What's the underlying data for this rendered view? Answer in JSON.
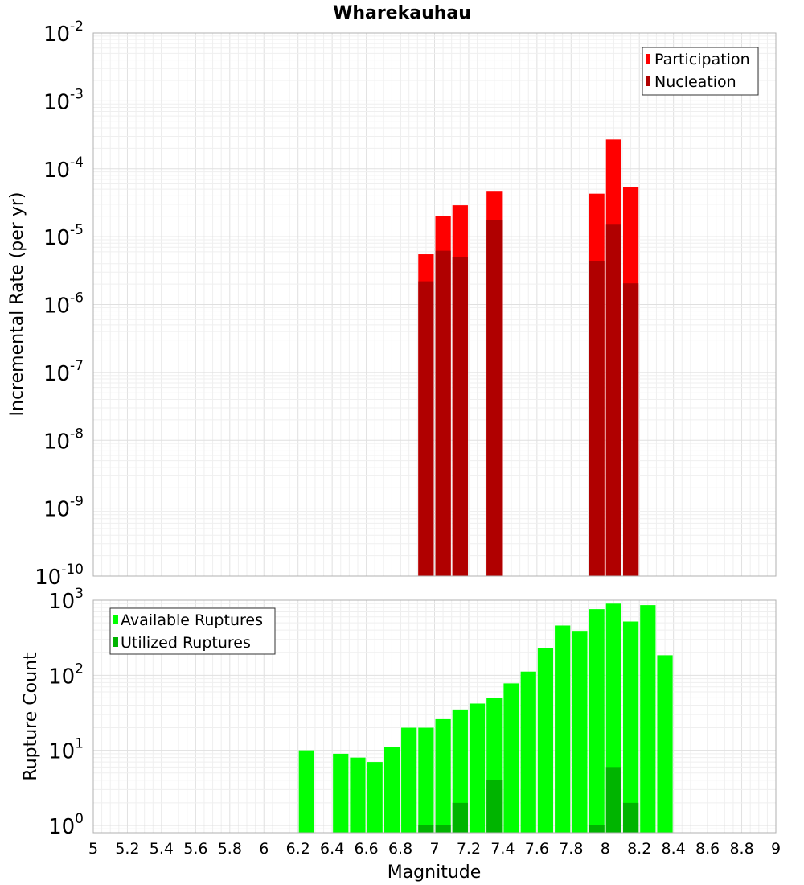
{
  "chart_data": [
    {
      "type": "bar",
      "title": "Wharekauhau",
      "xlabel": "",
      "ylabel": "Incremental Rate (per yr)",
      "yscale": "log",
      "ylim": [
        1e-10,
        0.01
      ],
      "xlim": [
        5,
        9
      ],
      "x_ticks": [
        "5",
        "5.2",
        "5.4",
        "5.6",
        "5.8",
        "6",
        "6.2",
        "6.4",
        "6.6",
        "6.8",
        "7",
        "7.2",
        "7.4",
        "7.6",
        "7.8",
        "8",
        "8.2",
        "8.4",
        "8.6",
        "8.8",
        "9"
      ],
      "y_ticks": [
        {
          "base": "10",
          "exp": "-10",
          "value": 1e-10
        },
        {
          "base": "10",
          "exp": "-9",
          "value": 1e-09
        },
        {
          "base": "10",
          "exp": "-8",
          "value": 1e-08
        },
        {
          "base": "10",
          "exp": "-7",
          "value": 1e-07
        },
        {
          "base": "10",
          "exp": "-6",
          "value": 1e-06
        },
        {
          "base": "10",
          "exp": "-5",
          "value": 1e-05
        },
        {
          "base": "10",
          "exp": "-4",
          "value": 0.0001
        },
        {
          "base": "10",
          "exp": "-3",
          "value": 0.001
        },
        {
          "base": "10",
          "exp": "-2",
          "value": 0.01
        }
      ],
      "legend": {
        "placement": "top-right",
        "entries": [
          "Participation",
          "Nucleation"
        ]
      },
      "bar_width": 0.1,
      "series": [
        {
          "name": "Participation",
          "color": "#ff0000",
          "x": [
            6.95,
            7.05,
            7.15,
            7.35,
            7.95,
            8.05,
            8.15
          ],
          "values": [
            5.5e-06,
            2e-05,
            2.9e-05,
            4.6e-05,
            4.3e-05,
            0.00027,
            5.3e-05
          ]
        },
        {
          "name": "Nucleation",
          "color": "#b00000",
          "x": [
            6.95,
            7.05,
            7.15,
            7.35,
            7.95,
            8.05,
            8.15
          ],
          "values": [
            2.2e-06,
            6.2e-06,
            5e-06,
            1.75e-05,
            4.4e-06,
            1.5e-05,
            2.05e-06
          ]
        }
      ],
      "grid": true
    },
    {
      "type": "bar",
      "title": "",
      "xlabel": "Magnitude",
      "ylabel": "Rupture Count",
      "yscale": "log",
      "ylim": [
        0.8,
        1000
      ],
      "xlim": [
        5,
        9
      ],
      "x_ticks": [
        "5",
        "5.2",
        "5.4",
        "5.6",
        "5.8",
        "6",
        "6.2",
        "6.4",
        "6.6",
        "6.8",
        "7",
        "7.2",
        "7.4",
        "7.6",
        "7.8",
        "8",
        "8.2",
        "8.4",
        "8.6",
        "8.8",
        "9"
      ],
      "y_ticks": [
        {
          "base": "10",
          "exp": "0",
          "value": 1
        },
        {
          "base": "10",
          "exp": "1",
          "value": 10
        },
        {
          "base": "10",
          "exp": "2",
          "value": 100
        },
        {
          "base": "10",
          "exp": "3",
          "value": 1000
        }
      ],
      "legend": {
        "placement": "top-left",
        "entries": [
          "Available Ruptures",
          "Utilized Ruptures"
        ]
      },
      "bar_width": 0.1,
      "series": [
        {
          "name": "Available Ruptures",
          "color": "#00ff00",
          "x": [
            6.25,
            6.45,
            6.55,
            6.65,
            6.75,
            6.85,
            6.95,
            7.05,
            7.15,
            7.25,
            7.35,
            7.45,
            7.55,
            7.65,
            7.75,
            7.85,
            7.95,
            8.05,
            8.15,
            8.25,
            8.35
          ],
          "values": [
            10,
            9,
            8,
            7,
            11,
            20,
            20,
            26,
            35,
            42,
            50,
            78,
            112,
            230,
            460,
            390,
            760,
            900,
            520,
            860,
            185
          ]
        },
        {
          "name": "Utilized Ruptures",
          "color": "#00b400",
          "x": [
            6.95,
            7.05,
            7.15,
            7.35,
            7.95,
            8.05,
            8.15
          ],
          "values": [
            1,
            1,
            2,
            4,
            1,
            6,
            2
          ]
        }
      ],
      "grid": true
    }
  ]
}
